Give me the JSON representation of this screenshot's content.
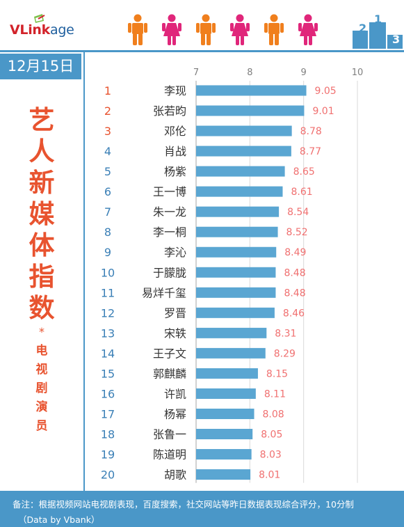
{
  "header": {
    "logo": {
      "brand_bold": "VLink",
      "brand_suffix": "age"
    },
    "figures": [
      {
        "gender": "male",
        "color": "#f07f1d"
      },
      {
        "gender": "female",
        "color": "#e0267a"
      },
      {
        "gender": "male",
        "color": "#f07f1d"
      },
      {
        "gender": "female",
        "color": "#e0267a"
      },
      {
        "gender": "male",
        "color": "#f07f1d"
      },
      {
        "gender": "female",
        "color": "#e0267a"
      }
    ],
    "podium": {
      "ranks": [
        "2",
        "1",
        "3"
      ],
      "color": "#4a97c8"
    }
  },
  "sidebar": {
    "date": "12月15日",
    "title_chars": [
      "艺",
      "人",
      "新",
      "媒",
      "体",
      "指",
      "数"
    ],
    "star": "*",
    "subtitle_chars": [
      "电",
      "视",
      "剧",
      "演",
      "员"
    ]
  },
  "colors": {
    "accent_blue": "#4a97c8",
    "title_red": "#e8532f",
    "value_pink": "#f07070",
    "rank_red": "#e8532f",
    "rank_blue": "#3a7fb6",
    "bar": "#5aa6d2"
  },
  "chart_data": {
    "type": "bar",
    "orientation": "horizontal",
    "xlim": [
      7,
      10
    ],
    "xticks": [
      "7",
      "8",
      "9",
      "10"
    ],
    "grid": true,
    "ranks": [
      "1",
      "2",
      "3",
      "4",
      "5",
      "6",
      "7",
      "8",
      "9",
      "10",
      "11",
      "12",
      "13",
      "14",
      "15",
      "16",
      "17",
      "18",
      "19",
      "20"
    ],
    "categories": [
      "李现",
      "张若昀",
      "邓伦",
      "肖战",
      "杨紫",
      "王一博",
      "朱一龙",
      "李一桐",
      "李沁",
      "于朦胧",
      "易烊千玺",
      "罗晋",
      "宋轶",
      "王子文",
      "郭麒麟",
      "许凯",
      "杨幂",
      "张鲁一",
      "陈道明",
      "胡歌"
    ],
    "values": [
      9.05,
      9.01,
      8.78,
      8.77,
      8.65,
      8.61,
      8.54,
      8.52,
      8.49,
      8.48,
      8.48,
      8.46,
      8.31,
      8.29,
      8.15,
      8.11,
      8.08,
      8.05,
      8.03,
      8.01
    ],
    "value_labels": [
      "9.05",
      "9.01",
      "8.78",
      "8.77",
      "8.65",
      "8.61",
      "8.54",
      "8.52",
      "8.49",
      "8.48",
      "8.48",
      "8.46",
      "8.31",
      "8.29",
      "8.15",
      "8.11",
      "8.08",
      "8.05",
      "8.03",
      "8.01"
    ]
  },
  "footer": {
    "note": "备注：根据视频网站电视剧表现，百度搜索，社交网站等昨日数据表现综合评分，10分制",
    "credit": "（Data by Vbank）"
  }
}
